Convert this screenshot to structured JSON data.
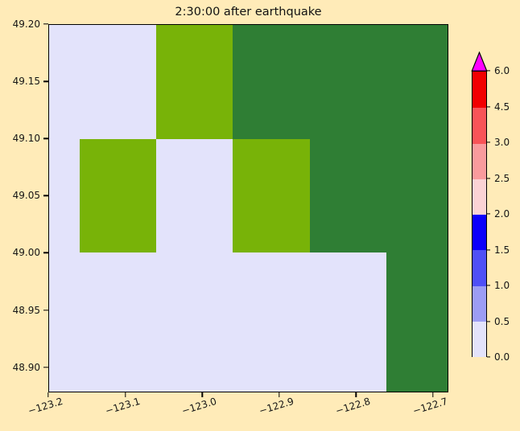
{
  "figure": {
    "title": "2:30:00 after earthquake",
    "background_color": "#FFEBB8"
  },
  "chart_data": {
    "type": "heatmap",
    "title": "2:30:00 after earthquake",
    "xlabel": "",
    "ylabel": "",
    "xlim": [
      -123.2,
      -122.68
    ],
    "ylim": [
      48.878,
      49.2
    ],
    "grid": false,
    "xticks": [
      -123.2,
      -123.1,
      -123.0,
      -122.9,
      -122.8,
      -122.7
    ],
    "xtick_labels": [
      "−123.2",
      "−123.1",
      "−123.0",
      "−122.9",
      "−122.8",
      "−122.7"
    ],
    "xtick_rotation_deg": 17,
    "yticks": [
      49.2,
      49.15,
      49.1,
      49.05,
      49.0,
      48.95,
      48.9
    ],
    "ytick_labels": [
      "49.20",
      "49.15",
      "49.10",
      "49.05",
      "49.00",
      "48.95",
      "48.90"
    ],
    "colors": {
      "calm_water": "#E3E3FB",
      "land_low": "#78B308",
      "land_high": "#2F7E34"
    },
    "cells": [
      {
        "x0": -123.2,
        "x1": -123.06,
        "y0": 49.1,
        "y1": 49.2,
        "category": "calm_water"
      },
      {
        "x0": -123.06,
        "x1": -122.96,
        "y0": 49.1,
        "y1": 49.2,
        "category": "land_low"
      },
      {
        "x0": -122.96,
        "x1": -122.68,
        "y0": 49.1,
        "y1": 49.2,
        "category": "land_high"
      },
      {
        "x0": -123.2,
        "x1": -123.16,
        "y0": 49.0,
        "y1": 49.1,
        "category": "calm_water"
      },
      {
        "x0": -123.16,
        "x1": -123.06,
        "y0": 49.0,
        "y1": 49.1,
        "category": "land_low"
      },
      {
        "x0": -123.06,
        "x1": -122.96,
        "y0": 49.0,
        "y1": 49.1,
        "category": "calm_water"
      },
      {
        "x0": -122.96,
        "x1": -122.86,
        "y0": 49.0,
        "y1": 49.1,
        "category": "land_low"
      },
      {
        "x0": -122.86,
        "x1": -122.68,
        "y0": 49.0,
        "y1": 49.1,
        "category": "land_high"
      },
      {
        "x0": -123.2,
        "x1": -122.76,
        "y0": 48.878,
        "y1": 49.0,
        "category": "calm_water"
      },
      {
        "x0": -122.76,
        "x1": -122.68,
        "y0": 48.878,
        "y1": 49.0,
        "category": "land_high"
      }
    ],
    "colorbar": {
      "boundaries": [
        0.0,
        0.5,
        1.0,
        1.5,
        2.0,
        2.5,
        3.0,
        4.5,
        6.0
      ],
      "tick_labels": [
        "0.0",
        "0.5",
        "1.0",
        "1.5",
        "2.0",
        "2.5",
        "3.0",
        "4.5",
        "6.0"
      ],
      "segment_colors": [
        "#E3E3FB",
        "#9C9DF4",
        "#4F50F6",
        "#0B00FA",
        "#FBD3D5",
        "#F99B9D",
        "#F85458",
        "#F20000"
      ],
      "over_color": "#FF00FF",
      "spacing": "uniform",
      "position": "right"
    }
  }
}
